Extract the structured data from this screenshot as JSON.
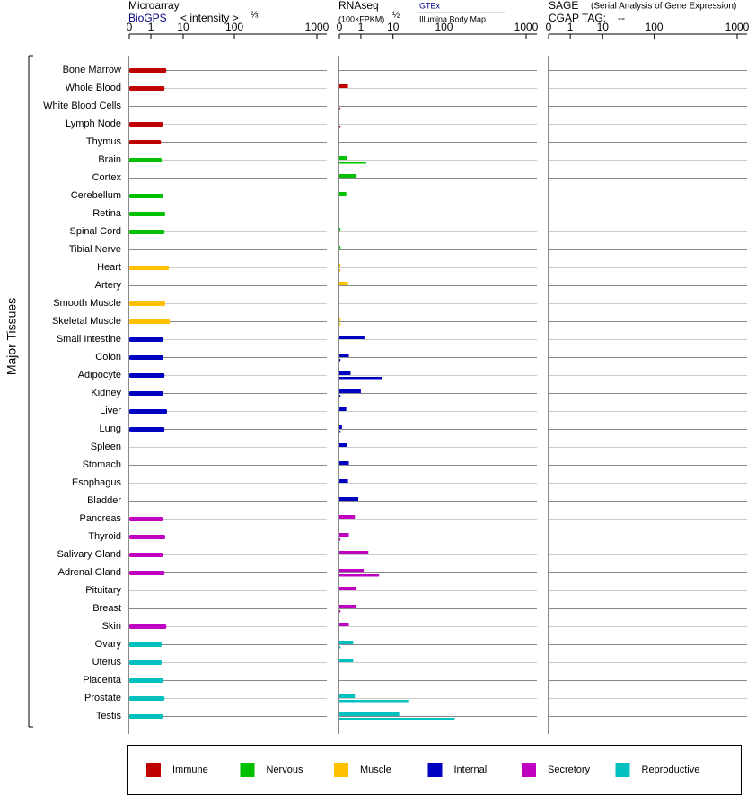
{
  "chart_data": {
    "type": "bar",
    "microarray_title": "Microarray",
    "microarray_source": "BioGPS",
    "microarray_unit": "< intensity >",
    "microarray_power": "⅔",
    "rnaseq_title": "RNAseq",
    "rnaseq_unit": "(100×FPKM)",
    "rnaseq_power": "½",
    "gtex_label": "GTEx",
    "illumina_label": "Illumina Body Map",
    "sage_title": "SAGE",
    "sage_subtitle": "(Serial Analysis of Gene Expression)",
    "sage_tag_label": "CGAP TAG:",
    "sage_tag": "--",
    "y_label": "Major Tissues",
    "xlim": [
      0,
      1000
    ],
    "xticks": [
      0,
      1,
      10,
      100,
      1000
    ],
    "groups": [
      {
        "name": "Immune",
        "color": "#c00000",
        "tissues": [
          "Bone Marrow",
          "Whole Blood",
          "White Blood Cells",
          "Lymph Node",
          "Thymus"
        ],
        "microarray": [
          5.3,
          4.8,
          null,
          4.3,
          3.8
        ],
        "gtex": [
          null,
          0.4,
          null,
          null,
          null
        ],
        "illumina": [
          null,
          null,
          0.05,
          0.05,
          null
        ]
      },
      {
        "name": "Nervous",
        "color": "#00c000",
        "tissues": [
          "Brain",
          "Cortex",
          "Cerebellum",
          "Retina",
          "Spinal Cord",
          "Tibial Nerve"
        ],
        "microarray": [
          4.0,
          null,
          4.5,
          5.0,
          4.8,
          null
        ],
        "gtex": [
          0.36,
          0.8,
          0.32,
          null,
          0.05,
          0.05
        ],
        "illumina": [
          2.5,
          null,
          null,
          null,
          null,
          null
        ]
      },
      {
        "name": "Muscle",
        "color": "#ffc000",
        "tissues": [
          "Heart",
          "Artery",
          "Smooth Muscle",
          "Skeletal Muscle"
        ],
        "microarray": [
          6.0,
          null,
          5.0,
          6.3
        ],
        "gtex": [
          0.05,
          0.4,
          null,
          0.05
        ],
        "illumina": [
          0.05,
          null,
          null,
          0.05
        ]
      },
      {
        "name": "Internal",
        "color": "#0000c0",
        "tissues": [
          "Small Intestine",
          "Colon",
          "Adipocyte",
          "Kidney",
          "Liver",
          "Lung",
          "Spleen",
          "Stomach",
          "Esophagus",
          "Bladder"
        ],
        "microarray": [
          4.5,
          4.5,
          4.8,
          4.5,
          5.5,
          4.8,
          null,
          null,
          null,
          null
        ],
        "gtex": [
          2.0,
          0.44,
          0.52,
          1.0,
          0.32,
          0.12,
          0.36,
          0.44,
          0.4,
          0.88
        ],
        "illumina": [
          null,
          0.05,
          6.9,
          0.05,
          null,
          0.05,
          null,
          null,
          null,
          null
        ]
      },
      {
        "name": "Secretory",
        "color": "#c000c0",
        "tissues": [
          "Pancreas",
          "Thyroid",
          "Salivary Gland",
          "Adrenal Gland",
          "Pituitary",
          "Breast",
          "Skin"
        ],
        "microarray": [
          4.3,
          5.0,
          4.3,
          4.8,
          null,
          null,
          5.3
        ],
        "gtex": [
          0.72,
          0.44,
          3.1,
          1.8,
          0.8,
          0.8,
          0.44
        ],
        "illumina": [
          null,
          0.05,
          null,
          6.1,
          null,
          0.05,
          null
        ]
      },
      {
        "name": "Reproductive",
        "color": "#00c0c0",
        "tissues": [
          "Ovary",
          "Uterus",
          "Placenta",
          "Prostate",
          "Testis"
        ],
        "microarray": [
          4.0,
          4.0,
          4.5,
          4.8,
          4.3
        ],
        "gtex": [
          0.64,
          0.64,
          null,
          0.72,
          21
        ],
        "illumina": [
          0.05,
          null,
          null,
          37,
          217
        ]
      }
    ]
  }
}
